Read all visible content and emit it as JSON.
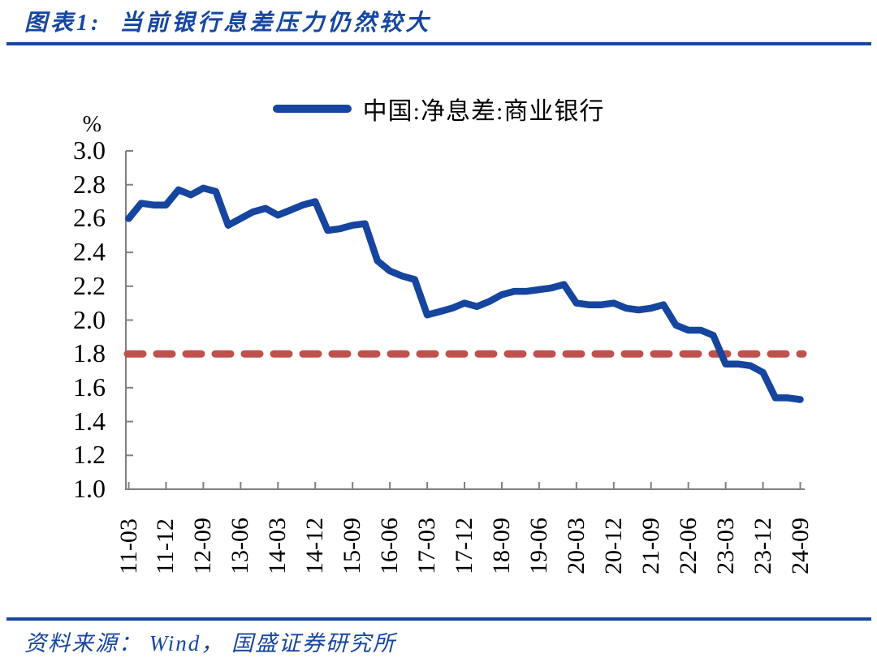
{
  "header": {
    "title": "图表1:  当前银行息差压力仍然较大"
  },
  "footer": {
    "source": "资料来源： Wind， 国盛证券研究所"
  },
  "colors": {
    "accent_blue": "#1646A0",
    "line_blue": "#15459E",
    "ref_red": "#C0504D",
    "axis_gray": "#808080",
    "text_black": "#000000"
  },
  "chart_data": {
    "type": "line",
    "title": "图表1: 当前银行息差压力仍然较大",
    "unit_label": "%",
    "legend_position": "top-center",
    "grid": false,
    "ylim": [
      1.0,
      3.0
    ],
    "y_tick_labels": [
      "3.0",
      "2.8",
      "2.6",
      "2.4",
      "2.2",
      "2.0",
      "1.8",
      "1.6",
      "1.4",
      "1.2",
      "1.0"
    ],
    "x_tick_labels": [
      "11-03",
      "11-12",
      "12-09",
      "13-06",
      "14-03",
      "14-12",
      "15-09",
      "16-06",
      "17-03",
      "17-12",
      "18-09",
      "19-06",
      "20-03",
      "20-12",
      "21-09",
      "22-06",
      "23-03",
      "23-12",
      "24-09"
    ],
    "x": [
      "11-03",
      "11-06",
      "11-09",
      "11-12",
      "12-03",
      "12-06",
      "12-09",
      "12-12",
      "13-03",
      "13-06",
      "13-09",
      "13-12",
      "14-03",
      "14-06",
      "14-09",
      "14-12",
      "15-03",
      "15-06",
      "15-09",
      "15-12",
      "16-03",
      "16-06",
      "16-09",
      "16-12",
      "17-03",
      "17-06",
      "17-09",
      "17-12",
      "18-03",
      "18-06",
      "18-09",
      "18-12",
      "19-03",
      "19-06",
      "19-09",
      "19-12",
      "20-03",
      "20-06",
      "20-09",
      "20-12",
      "21-03",
      "21-06",
      "21-09",
      "21-12",
      "22-03",
      "22-06",
      "22-09",
      "22-12",
      "23-03",
      "23-06",
      "23-09",
      "23-12",
      "24-03",
      "24-06",
      "24-09"
    ],
    "series": [
      {
        "name": "中国:净息差:商业银行",
        "color": "#15459E",
        "values": [
          2.6,
          2.69,
          2.68,
          2.68,
          2.77,
          2.74,
          2.78,
          2.76,
          2.56,
          2.6,
          2.64,
          2.66,
          2.62,
          2.65,
          2.68,
          2.7,
          2.53,
          2.54,
          2.56,
          2.57,
          2.35,
          2.29,
          2.26,
          2.24,
          2.03,
          2.05,
          2.07,
          2.1,
          2.08,
          2.11,
          2.15,
          2.17,
          2.17,
          2.18,
          2.19,
          2.21,
          2.1,
          2.09,
          2.09,
          2.1,
          2.07,
          2.06,
          2.07,
          2.09,
          1.97,
          1.94,
          1.94,
          1.91,
          1.74,
          1.74,
          1.73,
          1.69,
          1.54,
          1.54,
          1.53
        ]
      }
    ],
    "reference_line": {
      "value": 1.8,
      "color": "#C0504D",
      "style": "dashed"
    }
  }
}
